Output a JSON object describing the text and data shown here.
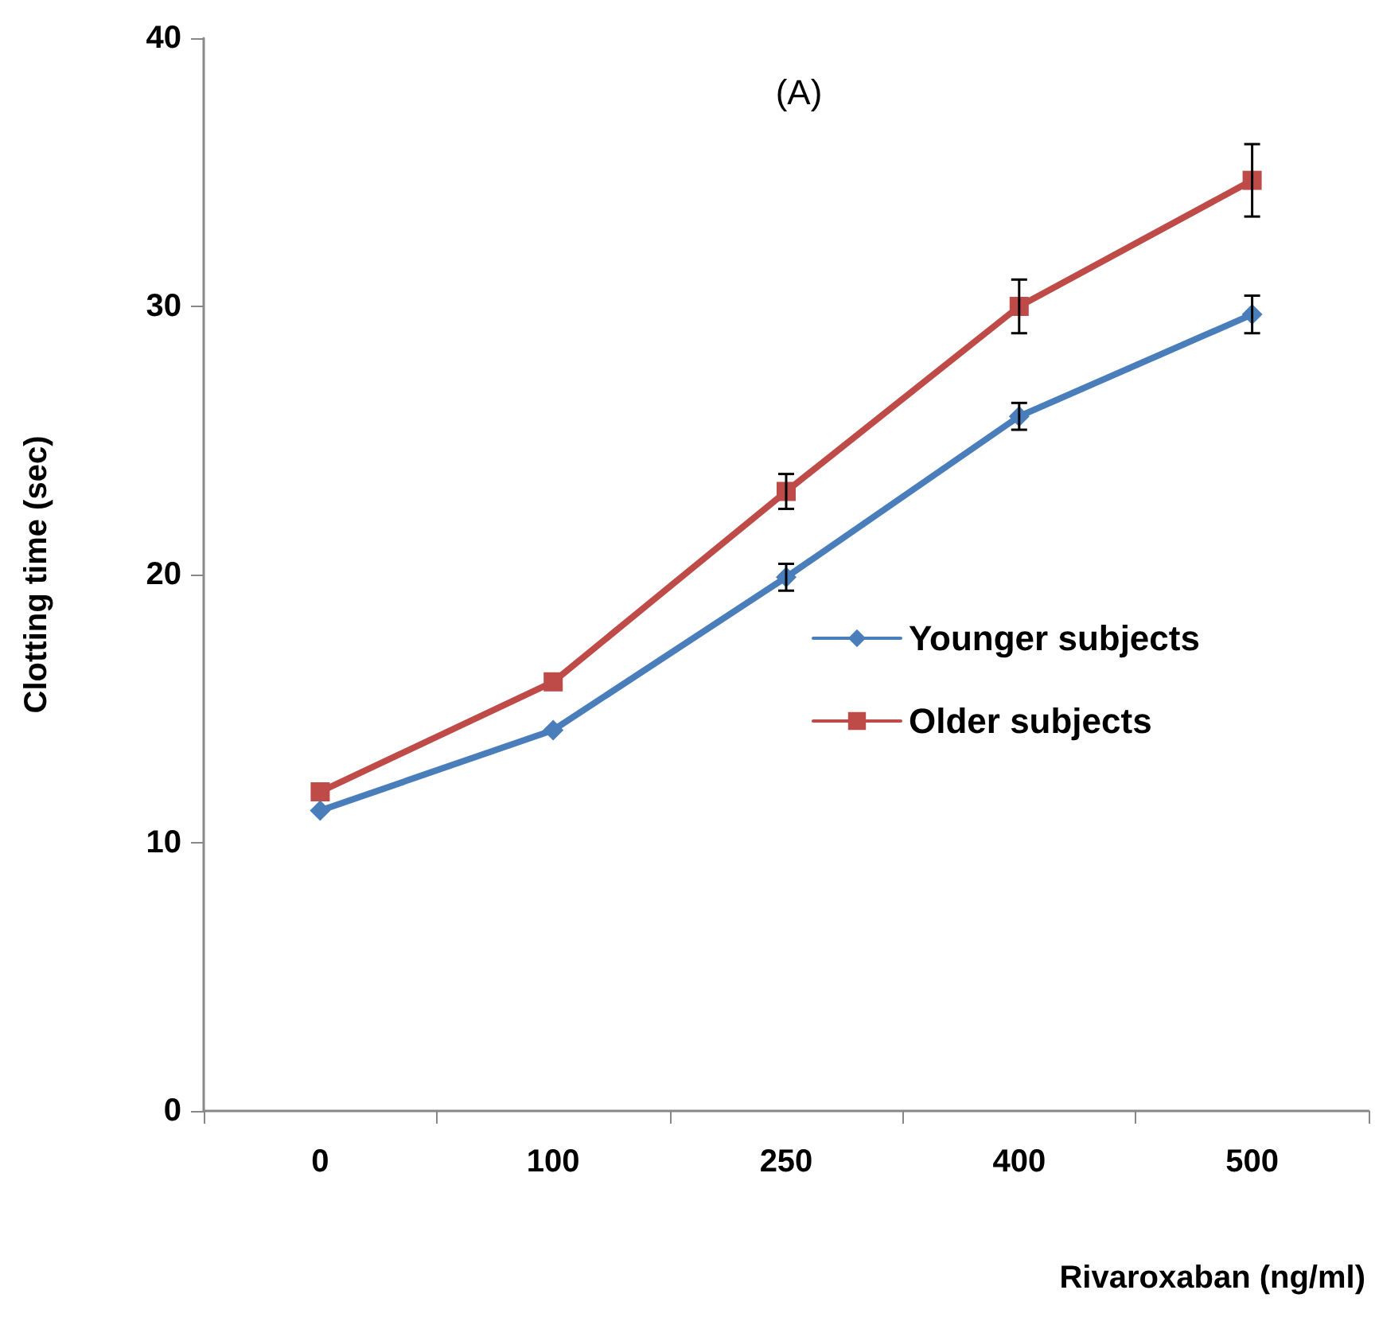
{
  "chart_data": {
    "type": "line",
    "title": "(A)",
    "xlabel": "Rivaroxaban (ng/ml)",
    "ylabel": "Clotting time (sec)",
    "categories": [
      "0",
      "100",
      "250",
      "400",
      "500"
    ],
    "series": [
      {
        "name": "Younger subjects",
        "color": "#4a7ebb",
        "marker": "diamond",
        "values": [
          11.2,
          14.2,
          19.9,
          25.9,
          29.7
        ],
        "errors": [
          null,
          null,
          0.5,
          0.5,
          0.7
        ]
      },
      {
        "name": "Older subjects",
        "color": "#be4b48",
        "marker": "square",
        "values": [
          11.9,
          16.0,
          23.1,
          30.0,
          34.7
        ],
        "errors": [
          null,
          null,
          0.65,
          1.0,
          1.35
        ]
      }
    ],
    "ylim": [
      0,
      40
    ],
    "yticks": [
      0,
      10,
      20,
      30,
      40
    ],
    "grid": false,
    "legend": "right",
    "line_style": "solid"
  }
}
